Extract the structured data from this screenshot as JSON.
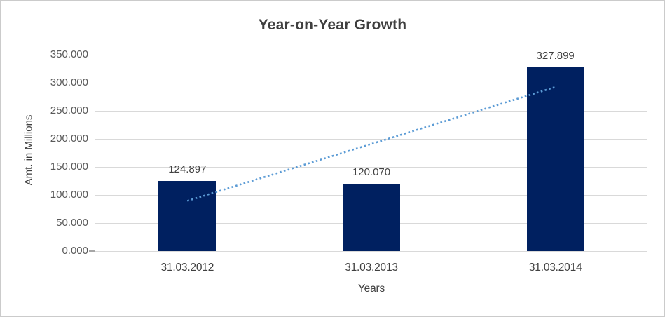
{
  "chart_data": {
    "type": "bar",
    "title": "Year-on-Year Growth",
    "xlabel": "Years",
    "ylabel": "Amt. in Millions",
    "categories": [
      "31.03.2012",
      "31.03.2013",
      "31.03.2014"
    ],
    "values": [
      124897,
      120070,
      327899
    ],
    "value_labels": [
      "124.897",
      "120.070",
      "327.899"
    ],
    "ylim": [
      0,
      350000
    ],
    "ytick_step": 50000,
    "ytick_labels": [
      "0.000",
      "50.000",
      "100.000",
      "150.000",
      "200.000",
      "250.000",
      "300.000",
      "350.000"
    ],
    "grid": true,
    "legend": "none",
    "trendline": {
      "type": "linear",
      "style": "dotted"
    },
    "colors": {
      "bar": "#002060",
      "trendline": "#5b9bd5",
      "gridline": "#d9d9d9",
      "axis_tick": "#a6a6a6",
      "title_text": "#3f3f3f",
      "tick_text": "#595959",
      "label_text": "#404040",
      "border": "#cbcbcb",
      "background": "#ffffff"
    }
  }
}
